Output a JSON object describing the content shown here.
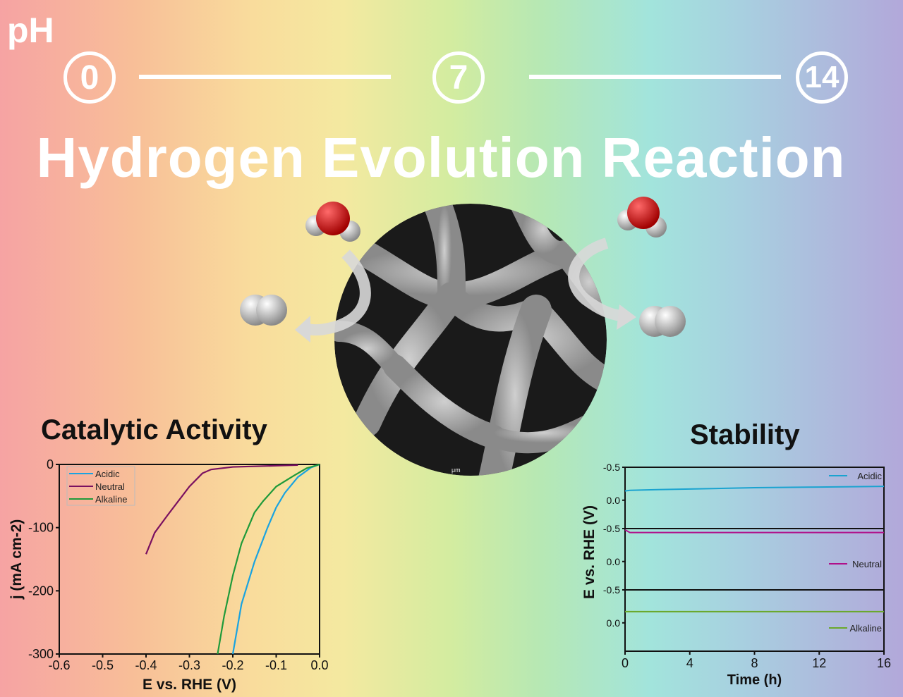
{
  "header": {
    "ph_label": "pH",
    "ph_values": [
      "0",
      "7",
      "14"
    ],
    "title": "Hydrogen Evolution Reaction"
  },
  "sections": {
    "activity": "Catalytic Activity",
    "stability": "Stability"
  },
  "center_image": {
    "scale_label": "μm"
  },
  "chart_data": [
    {
      "type": "line",
      "title": "Catalytic Activity",
      "xlabel": "E vs. RHE (V)",
      "ylabel": "j (mA cm-2)",
      "xlim": [
        -0.6,
        0.0
      ],
      "ylim": [
        -300,
        0
      ],
      "xticks": [
        "-0.6",
        "-0.5",
        "-0.4",
        "-0.3",
        "-0.2",
        "-0.1",
        "0.0"
      ],
      "yticks": [
        "0",
        "-100",
        "-200",
        "-300"
      ],
      "legend_position": "top-left",
      "series": [
        {
          "name": "Acidic",
          "color": "#1aa3e0",
          "x": [
            0,
            -0.02,
            -0.05,
            -0.08,
            -0.1,
            -0.12,
            -0.15,
            -0.18,
            -0.2
          ],
          "y": [
            0,
            -5,
            -20,
            -45,
            -68,
            -100,
            -154,
            -221,
            -300
          ]
        },
        {
          "name": "Neutral",
          "color": "#7a1060",
          "x": [
            -0.05,
            -0.1,
            -0.2,
            -0.25,
            -0.27,
            -0.3,
            -0.33,
            -0.35,
            -0.38,
            -0.4
          ],
          "y": [
            -1,
            -2,
            -4,
            -8,
            -14,
            -35,
            -62,
            -80,
            -108,
            -142
          ]
        },
        {
          "name": "Alkaline",
          "color": "#1f9a3a",
          "x": [
            0,
            -0.03,
            -0.06,
            -0.1,
            -0.13,
            -0.15,
            -0.18,
            -0.2,
            -0.22,
            -0.235
          ],
          "y": [
            0,
            -6,
            -18,
            -35,
            -58,
            -76,
            -125,
            -176,
            -240,
            -300
          ]
        }
      ]
    },
    {
      "type": "line",
      "title": "Stability",
      "xlabel": "Time (h)",
      "ylabel": "E vs. RHE (V)",
      "xlim": [
        0,
        16
      ],
      "panel_ylim": [
        -0.5,
        0.43
      ],
      "xticks": [
        "0",
        "4",
        "8",
        "12",
        "16"
      ],
      "yticks": [
        "-0.5",
        "0.0"
      ],
      "legend_position": "right",
      "series": [
        {
          "name": "Acidic",
          "color": "#1aa3d0",
          "x": [
            0,
            0.3,
            2,
            4,
            8,
            12,
            16
          ],
          "y": [
            -0.14,
            -0.15,
            -0.16,
            -0.17,
            -0.19,
            -0.2,
            -0.21
          ]
        },
        {
          "name": "Neutral",
          "color": "#b0108a",
          "x": [
            0,
            0.3,
            2,
            4,
            8,
            12,
            16
          ],
          "y": [
            -0.48,
            -0.44,
            -0.44,
            -0.44,
            -0.44,
            -0.44,
            -0.44
          ]
        },
        {
          "name": "Alkaline",
          "color": "#6aa82a",
          "x": [
            0,
            2,
            4,
            8,
            12,
            16
          ],
          "y": [
            -0.17,
            -0.17,
            -0.17,
            -0.17,
            -0.17,
            -0.17
          ]
        }
      ]
    }
  ]
}
